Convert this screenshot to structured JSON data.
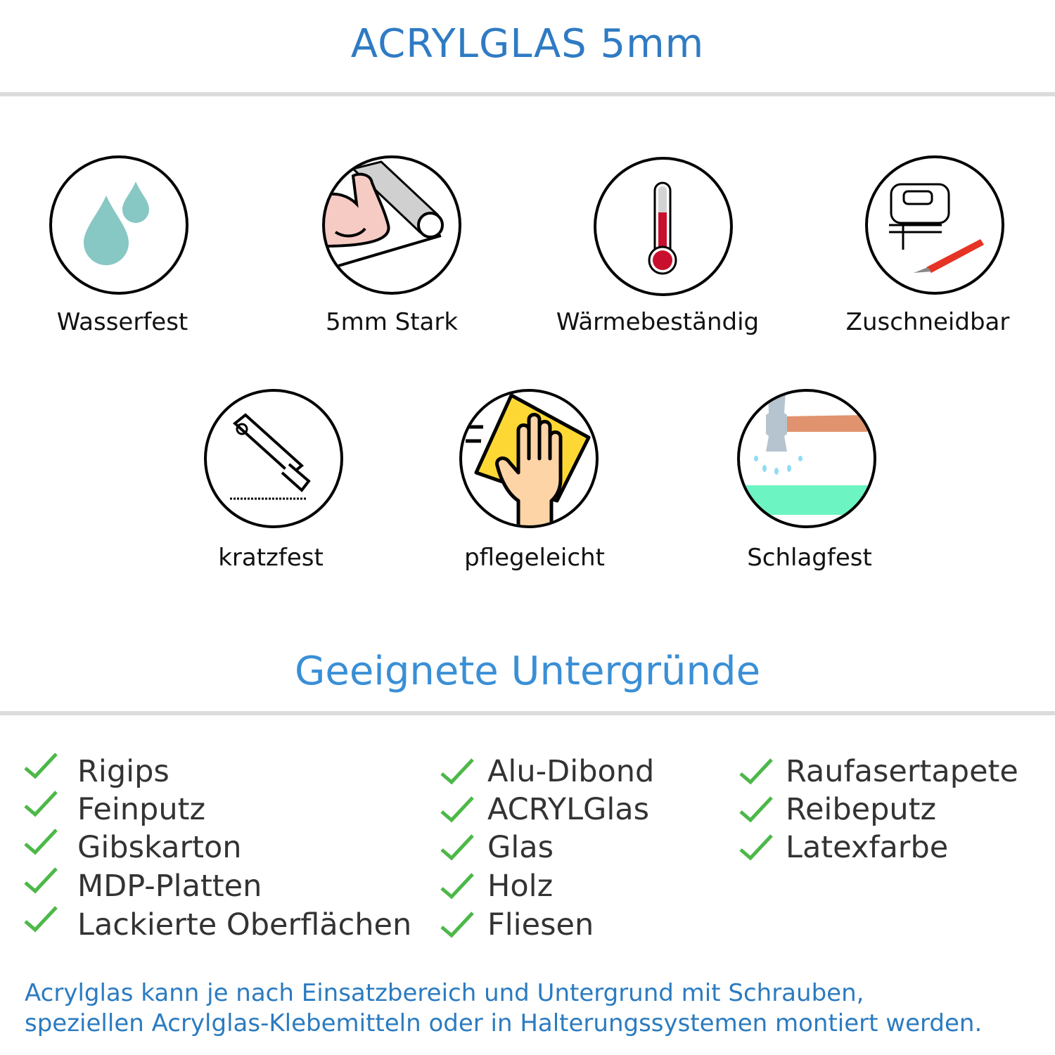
{
  "header": {
    "title": "ACRYLGLAS 5mm"
  },
  "features": [
    {
      "label": "Wasserfest",
      "icon": "water-drops-icon"
    },
    {
      "label": "5mm Stark",
      "icon": "strong-arm-icon"
    },
    {
      "label": "Wärmebeständig",
      "icon": "thermometer-icon"
    },
    {
      "label": "Zuschneidbar",
      "icon": "jigsaw-icon"
    },
    {
      "label": "kratzfest",
      "icon": "cutter-knife-icon"
    },
    {
      "label": "pflegeleicht",
      "icon": "cleaning-hand-icon"
    },
    {
      "label": "Schlagfest",
      "icon": "hammer-icon"
    }
  ],
  "surfaces": {
    "title": "Geeignete Untergründe",
    "columns": [
      [
        "Rigips",
        "Feinputz",
        "Gibskarton",
        "MDP-Platten",
        "Lackierte Oberflächen"
      ],
      [
        "Alu-Dibond",
        "ACRYLGlas",
        "Glas",
        "Holz",
        "Fliesen"
      ],
      [
        "Raufasertapete",
        "Reibeputz",
        "Latexfarbe"
      ]
    ]
  },
  "footer": {
    "line1": "Acrylglas kann je nach Einsatzbereich und Untergrund mit Schrauben,",
    "line2": "speziellen Acrylglas-Klebemitteln oder in Halterungssystemen montiert werden."
  },
  "colors": {
    "title": "#2f7bc3",
    "subtitle": "#3a8fd6",
    "check": "#4cb848",
    "footer": "#2b7bc0"
  }
}
